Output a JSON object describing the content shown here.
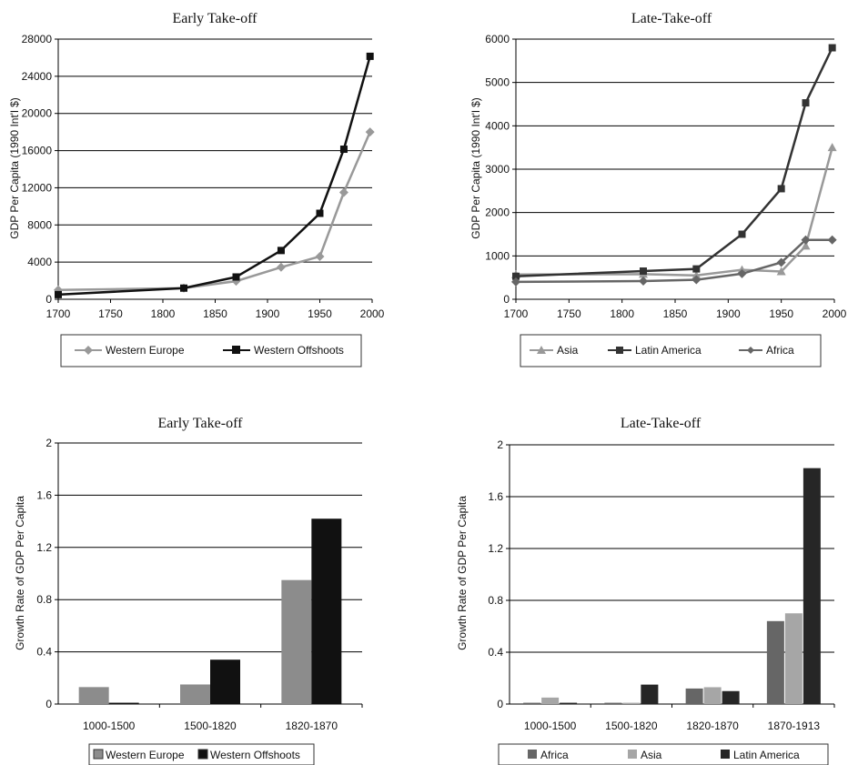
{
  "chart_data": [
    {
      "type": "line",
      "title": "Early Take-off",
      "ylabel": "GDP Per Capita (1990 Int'l $)",
      "xlabel": "",
      "xlim": [
        1700,
        2000
      ],
      "ylim": [
        0,
        28000
      ],
      "xticks": [
        "1700",
        "1750",
        "1800",
        "1850",
        "1900",
        "1950",
        "2000"
      ],
      "yticks": [
        "0",
        "4000",
        "8000",
        "12000",
        "16000",
        "20000",
        "24000",
        "28000"
      ],
      "legend_position": "bottom",
      "series": [
        {
          "name": "Western Europe",
          "color": "#999999",
          "marker": "diamond",
          "x": [
            1700,
            1820,
            1870,
            1913,
            1950,
            1973,
            1998
          ],
          "y": [
            1000,
            1200,
            1950,
            3450,
            4600,
            11500,
            18000
          ]
        },
        {
          "name": "Western Offshoots",
          "color": "#111111",
          "marker": "square",
          "x": [
            1700,
            1820,
            1870,
            1913,
            1950,
            1973,
            1998
          ],
          "y": [
            500,
            1200,
            2400,
            5250,
            9250,
            16150,
            26150
          ]
        }
      ]
    },
    {
      "type": "line",
      "title": "Late-Take-off",
      "ylabel": "GDP Per Capita (1990 Int'l $)",
      "xlabel": "",
      "xlim": [
        1700,
        2000
      ],
      "ylim": [
        0,
        6000
      ],
      "xticks": [
        "1700",
        "1750",
        "1800",
        "1850",
        "1900",
        "1950",
        "2000"
      ],
      "yticks": [
        "0",
        "1000",
        "2000",
        "3000",
        "4000",
        "5000",
        "6000"
      ],
      "legend_position": "bottom",
      "series": [
        {
          "name": "Asia",
          "color": "#999999",
          "marker": "triangle",
          "x": [
            1700,
            1820,
            1870,
            1913,
            1950,
            1973,
            1998
          ],
          "y": [
            570,
            580,
            550,
            680,
            640,
            1230,
            3500
          ]
        },
        {
          "name": "Latin America",
          "color": "#333333",
          "marker": "square",
          "x": [
            1700,
            1820,
            1870,
            1913,
            1950,
            1973,
            1998
          ],
          "y": [
            530,
            650,
            700,
            1500,
            2550,
            4530,
            5800
          ]
        },
        {
          "name": "Africa",
          "color": "#666666",
          "marker": "diamond",
          "x": [
            1700,
            1820,
            1870,
            1913,
            1950,
            1973,
            1998
          ],
          "y": [
            400,
            420,
            450,
            590,
            850,
            1370,
            1370
          ]
        }
      ]
    },
    {
      "type": "bar",
      "title": "Early Take-off",
      "ylabel": "Growth Rate of GDP Per Capita",
      "xlabel": "",
      "ylim": [
        0,
        2
      ],
      "yticks": [
        "0",
        "0.4",
        "0.8",
        "1.2",
        "1.6",
        "2"
      ],
      "categories": [
        "1000-1500",
        "1500-1820",
        "1820-1870"
      ],
      "legend_position": "bottom",
      "series": [
        {
          "name": "Western Europe",
          "color": "#8c8c8c",
          "values": [
            0.13,
            0.15,
            0.95
          ]
        },
        {
          "name": "Western Offshoots",
          "color": "#111111",
          "values": [
            0.01,
            0.34,
            1.42
          ]
        }
      ]
    },
    {
      "type": "bar",
      "title": "Late-Take-off",
      "ylabel": "Growth Rate of GDP Per Capita",
      "xlabel": "",
      "ylim": [
        0,
        2
      ],
      "yticks": [
        "0",
        "0.4",
        "0.8",
        "1.2",
        "1.6",
        "2"
      ],
      "categories": [
        "1000-1500",
        "1500-1820",
        "1820-1870",
        "1870-1913"
      ],
      "legend_position": "bottom",
      "series": [
        {
          "name": "Africa",
          "color": "#666666",
          "values": [
            0.01,
            0.01,
            0.12,
            0.64
          ]
        },
        {
          "name": "Asia",
          "color": "#a6a6a6",
          "values": [
            0.05,
            0.01,
            0.13,
            0.7
          ]
        },
        {
          "name": "Latin America",
          "color": "#262626",
          "values": [
            0.01,
            0.15,
            0.1,
            1.82
          ]
        }
      ]
    }
  ]
}
